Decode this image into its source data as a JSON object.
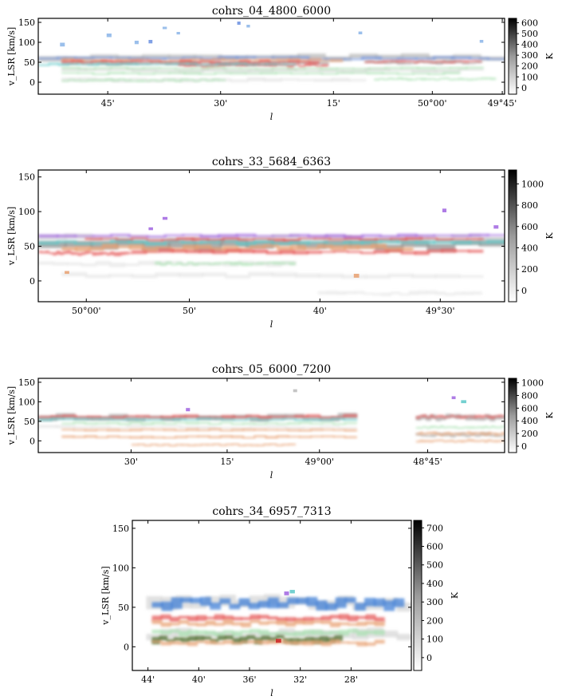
{
  "chart_data": [
    {
      "type": "heatmap",
      "title": "cohrs_04_4800_6000",
      "xlabel": "l",
      "ylabel": "v_LSR [km/s]",
      "ylim": [
        -30,
        160
      ],
      "yticks": [
        0,
        50,
        100,
        150
      ],
      "xticks": [
        "45'",
        "30'",
        "15'",
        "50°00'",
        "49°45'"
      ],
      "colorbar": {
        "label": "K",
        "ticks": [
          0,
          100,
          200,
          300,
          400,
          500,
          600
        ],
        "max": 640
      },
      "layout": "full",
      "gray_bands": [
        {
          "v": 62,
          "w": 10,
          "x0": 0,
          "x1": 1,
          "d": 0.35
        },
        {
          "v": 48,
          "w": 8,
          "x0": 0.05,
          "x1": 0.62,
          "d": 0.4
        },
        {
          "v": 50,
          "w": 6,
          "x0": 0.7,
          "x1": 0.95,
          "d": 0.45
        },
        {
          "v": 30,
          "w": 6,
          "x0": 0.05,
          "x1": 0.95,
          "d": 0.2
        },
        {
          "v": 5,
          "w": 6,
          "x0": 0.05,
          "x1": 0.7,
          "d": 0.15
        }
      ],
      "cloud_bands": [
        {
          "v": 60,
          "w": 5,
          "x0": 0.0,
          "x1": 1.0,
          "c": "#6a8fe0"
        },
        {
          "v": 55,
          "w": 5,
          "x0": 0.05,
          "x1": 0.65,
          "c": "#e8a070"
        },
        {
          "v": 50,
          "w": 6,
          "x0": 0.05,
          "x1": 0.6,
          "c": "#e55555"
        },
        {
          "v": 42,
          "w": 6,
          "x0": 0.3,
          "x1": 0.62,
          "c": "#e55555"
        },
        {
          "v": 52,
          "w": 4,
          "x0": 0.7,
          "x1": 0.95,
          "c": "#e55555"
        },
        {
          "v": 45,
          "w": 4,
          "x0": 0.0,
          "x1": 0.55,
          "c": "#5cc8c8"
        },
        {
          "v": 35,
          "w": 4,
          "x0": 0.05,
          "x1": 0.95,
          "c": "#a8e0b0"
        },
        {
          "v": 22,
          "w": 4,
          "x0": 0.05,
          "x1": 0.9,
          "c": "#a8e0b0"
        },
        {
          "v": 5,
          "w": 4,
          "x0": 0.05,
          "x1": 0.4,
          "c": "#a8e0b0"
        },
        {
          "v": 8,
          "w": 4,
          "x0": 0.72,
          "x1": 0.98,
          "c": "#a8e0b0"
        }
      ],
      "specks": [
        {
          "l": 0.24,
          "v": 102,
          "c": "#6a8fe0"
        },
        {
          "l": 0.27,
          "v": 135,
          "c": "#8ab4e8"
        },
        {
          "l": 0.3,
          "v": 122,
          "c": "#8ab4e8"
        },
        {
          "l": 0.43,
          "v": 148,
          "c": "#6a8fe0"
        },
        {
          "l": 0.45,
          "v": 140,
          "c": "#8ab4e8"
        },
        {
          "l": 0.21,
          "v": 100,
          "c": "#8ab4e8"
        },
        {
          "l": 0.69,
          "v": 123,
          "c": "#8ab4e8"
        },
        {
          "l": 0.15,
          "v": 118,
          "c": "#8ab4e8"
        },
        {
          "l": 0.05,
          "v": 95,
          "c": "#8ab4e8"
        },
        {
          "l": 0.95,
          "v": 102,
          "c": "#8ab4e8"
        }
      ]
    },
    {
      "type": "heatmap",
      "title": "cohrs_33_5684_6363",
      "xlabel": "l",
      "ylabel": "v_LSR [km/s]",
      "ylim": [
        -30,
        160
      ],
      "yticks": [
        0,
        50,
        100,
        150
      ],
      "xticks": [
        "50°00'",
        "50'",
        "40'",
        "49°30'"
      ],
      "colorbar": {
        "label": "K",
        "ticks": [
          0,
          200,
          400,
          600,
          800,
          1000
        ],
        "max": 1130
      },
      "layout": "full",
      "gray_bands": [
        {
          "v": 52,
          "w": 10,
          "x0": 0,
          "x1": 1,
          "d": 0.55
        },
        {
          "v": 62,
          "w": 6,
          "x0": 0,
          "x1": 1,
          "d": 0.2
        },
        {
          "v": 25,
          "w": 5,
          "x0": 0,
          "x1": 0.55,
          "d": 0.12
        },
        {
          "v": 8,
          "w": 5,
          "x0": 0.05,
          "x1": 0.95,
          "d": 0.12
        },
        {
          "v": -18,
          "w": 4,
          "x0": 0.6,
          "x1": 0.95,
          "d": 0.12
        }
      ],
      "cloud_bands": [
        {
          "v": 60,
          "w": 4,
          "x0": 0.1,
          "x1": 0.95,
          "c": "#e55555"
        },
        {
          "v": 55,
          "w": 4,
          "x0": 0.0,
          "x1": 1.0,
          "c": "#5cc8c8"
        },
        {
          "v": 48,
          "w": 6,
          "x0": 0.05,
          "x1": 0.8,
          "c": "#e8a070"
        },
        {
          "v": 42,
          "w": 4,
          "x0": 0.2,
          "x1": 0.95,
          "c": "#e55555"
        },
        {
          "v": 40,
          "w": 4,
          "x0": 0.0,
          "x1": 0.2,
          "c": "#e55555"
        },
        {
          "v": 65,
          "w": 3,
          "x0": 0.0,
          "x1": 1.0,
          "c": "#a064e0"
        },
        {
          "v": 25,
          "w": 3,
          "x0": 0.25,
          "x1": 0.55,
          "c": "#a8e0b0"
        }
      ],
      "specks": [
        {
          "l": 0.27,
          "v": 90,
          "c": "#a064e0"
        },
        {
          "l": 0.87,
          "v": 102,
          "c": "#a064e0"
        },
        {
          "l": 0.24,
          "v": 75,
          "c": "#a064e0"
        },
        {
          "l": 0.98,
          "v": 78,
          "c": "#a064e0"
        },
        {
          "l": 0.06,
          "v": 12,
          "c": "#e8a070"
        },
        {
          "l": 0.68,
          "v": 8,
          "c": "#e8a070"
        }
      ]
    },
    {
      "type": "heatmap",
      "title": "cohrs_05_6000_7200",
      "xlabel": "l",
      "ylabel": "v_LSR [km/s]",
      "ylim": [
        -30,
        160
      ],
      "yticks": [
        0,
        50,
        100,
        150
      ],
      "xticks": [
        "30'",
        "15'",
        "49°00'",
        "48°45'"
      ],
      "colorbar": {
        "label": "K",
        "ticks": [
          0,
          200,
          400,
          600,
          800,
          1000
        ],
        "max": 1070
      },
      "layout": "full",
      "gray_bands": [
        {
          "v": 60,
          "w": 10,
          "x0": 0,
          "x1": 0.68,
          "d": 0.45
        },
        {
          "v": 60,
          "w": 10,
          "x0": 0.81,
          "x1": 1,
          "d": 0.45
        },
        {
          "v": 15,
          "w": 6,
          "x0": 0.81,
          "x1": 1,
          "d": 0.4
        },
        {
          "v": 35,
          "w": 5,
          "x0": 0,
          "x1": 0.68,
          "d": 0.15
        }
      ],
      "cloud_bands": [
        {
          "v": 62,
          "w": 6,
          "x0": 0.0,
          "x1": 0.68,
          "c": "#e55555"
        },
        {
          "v": 55,
          "w": 4,
          "x0": 0.0,
          "x1": 0.68,
          "c": "#5cc8c8"
        },
        {
          "v": 45,
          "w": 4,
          "x0": 0.05,
          "x1": 0.68,
          "c": "#a8e0b0"
        },
        {
          "v": 28,
          "w": 4,
          "x0": 0.05,
          "x1": 0.68,
          "c": "#e8a070"
        },
        {
          "v": 10,
          "w": 4,
          "x0": 0.05,
          "x1": 0.68,
          "c": "#e8a070"
        },
        {
          "v": -10,
          "w": 3,
          "x0": 0.2,
          "x1": 0.55,
          "c": "#e8a070"
        },
        {
          "v": 62,
          "w": 5,
          "x0": 0.81,
          "x1": 1.0,
          "c": "#e55555"
        },
        {
          "v": 35,
          "w": 4,
          "x0": 0.81,
          "x1": 1.0,
          "c": "#a8e0b0"
        },
        {
          "v": 18,
          "w": 5,
          "x0": 0.81,
          "x1": 1.0,
          "c": "#e8a070"
        },
        {
          "v": 0,
          "w": 4,
          "x0": 0.81,
          "x1": 1.0,
          "c": "#e8a070"
        }
      ],
      "specks": [
        {
          "l": 0.32,
          "v": 80,
          "c": "#a064e0"
        },
        {
          "l": 0.55,
          "v": 128,
          "c": "#bbbbbb"
        },
        {
          "l": 0.89,
          "v": 110,
          "c": "#a064e0"
        },
        {
          "l": 0.91,
          "v": 100,
          "c": "#5cc8c8"
        }
      ]
    },
    {
      "type": "heatmap",
      "title": "cohrs_34_6957_7313",
      "xlabel": "l",
      "ylabel": "v_LSR [km/s]",
      "ylim": [
        -30,
        160
      ],
      "yticks": [
        0,
        50,
        100,
        150
      ],
      "xticks": [
        "44'",
        "40'",
        "36'",
        "32'",
        "28'"
      ],
      "colorbar": {
        "label": "K",
        "ticks": [
          0,
          100,
          200,
          300,
          400,
          500,
          600,
          700
        ],
        "max": 740
      },
      "layout": "narrow",
      "gray_bands": [
        {
          "v": 55,
          "w": 12,
          "x0": 0.05,
          "x1": 1,
          "d": 0.2
        },
        {
          "v": 15,
          "w": 10,
          "x0": 0.05,
          "x1": 1,
          "d": 0.2
        }
      ],
      "cloud_bands": [
        {
          "v": 55,
          "w": 10,
          "x0": 0.07,
          "x1": 0.97,
          "c": "#3a7bd5"
        },
        {
          "v": 36,
          "w": 5,
          "x0": 0.07,
          "x1": 0.9,
          "c": "#e55555"
        },
        {
          "v": 30,
          "w": 5,
          "x0": 0.07,
          "x1": 0.9,
          "c": "#e8a070"
        },
        {
          "v": 18,
          "w": 5,
          "x0": 0.07,
          "x1": 0.9,
          "c": "#a8e0b0"
        },
        {
          "v": 10,
          "w": 6,
          "x0": 0.07,
          "x1": 0.75,
          "c": "#4a6b2a"
        },
        {
          "v": 5,
          "w": 4,
          "x0": 0.07,
          "x1": 0.9,
          "c": "#e8a070"
        }
      ],
      "specks": [
        {
          "l": 0.57,
          "v": 70,
          "c": "#5cc8c8"
        },
        {
          "l": 0.55,
          "v": 68,
          "c": "#a064e0"
        },
        {
          "l": 0.52,
          "v": 8,
          "c": "#cc2222"
        }
      ]
    }
  ]
}
